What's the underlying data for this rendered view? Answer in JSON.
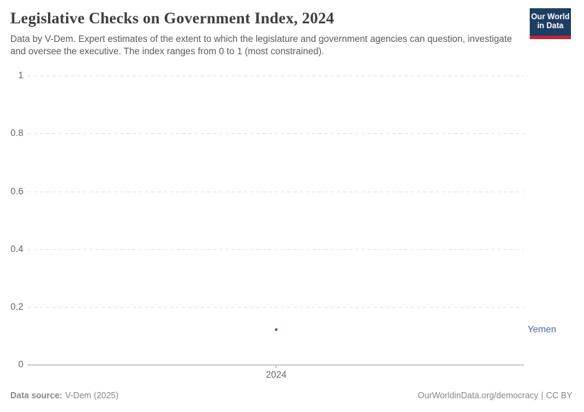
{
  "header": {
    "title": "Legislative Checks on Government Index, 2024",
    "subtitle": "Data by V-Dem. Expert estimates of the extent to which the legislature and government agencies can question, investigate and oversee the executive. The index ranges from 0 to 1 (most constrained)."
  },
  "logo": {
    "line1": "Our World",
    "line2": "in Data"
  },
  "chart_data": {
    "type": "scatter",
    "title": "Legislative Checks on Government Index, 2024",
    "x": [
      2024
    ],
    "series": [
      {
        "name": "Yemen",
        "values": [
          0.12
        ],
        "color": "#4c6a9e"
      }
    ],
    "xlabel": "",
    "ylabel": "",
    "ylim": [
      0,
      1
    ],
    "yticks": [
      1,
      0.8,
      0.6,
      0.4,
      0.2,
      0
    ],
    "y_tick_labels": [
      "1",
      "0.8",
      "0.6",
      "0.4",
      "0.2",
      "0"
    ],
    "x_tick_labels": [
      "2024"
    ],
    "grid": true,
    "gridline_color": "#e2e2e2",
    "axis_line_color": "#a1a1a1",
    "legend_position": "right-of-point"
  },
  "footer": {
    "source_label": "Data source:",
    "source_value": "V-Dem (2025)",
    "credit_link": "OurWorldinData.org/democracy",
    "credit_separator": "|",
    "credit_license": "CC BY"
  },
  "colors": {
    "accent_blue": "#4c6a9e",
    "logo_navy": "#1d3d63",
    "logo_red": "#c0273a",
    "title_dark": "#3d3d3d",
    "subtitle_gray": "#5b5b5b",
    "tick_gray": "#666666",
    "footer_gray": "#878787"
  }
}
